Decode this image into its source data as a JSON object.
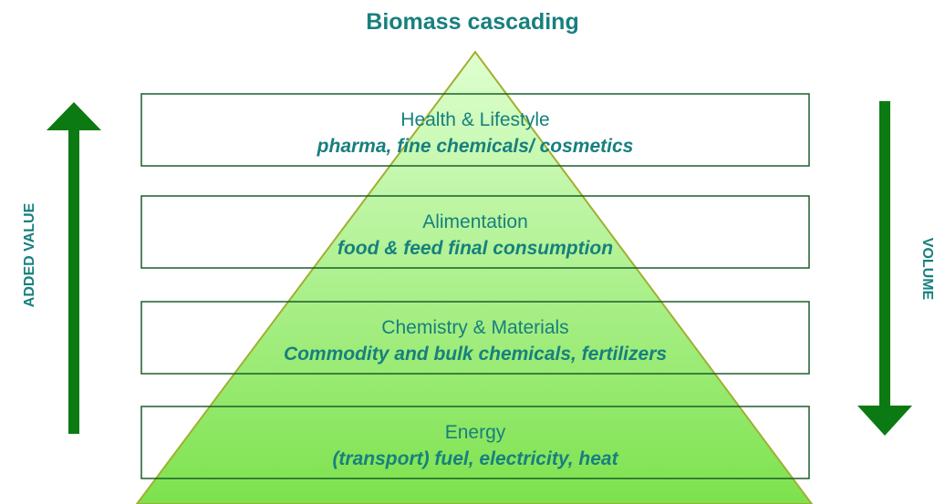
{
  "title": "Biomass cascading",
  "left_label": "ADDED VALUE",
  "right_label": "VOLUME",
  "levels": [
    {
      "title": "Health & Lifestyle",
      "subtitle": "pharma, fine chemicals/ cosmetics"
    },
    {
      "title": "Alimentation",
      "subtitle": "food & feed final consumption"
    },
    {
      "title": "Chemistry & Materials",
      "subtitle": "Commodity and bulk chemicals, fertilizers"
    },
    {
      "title": "Energy",
      "subtitle": "(transport) fuel, electricity, heat"
    }
  ]
}
